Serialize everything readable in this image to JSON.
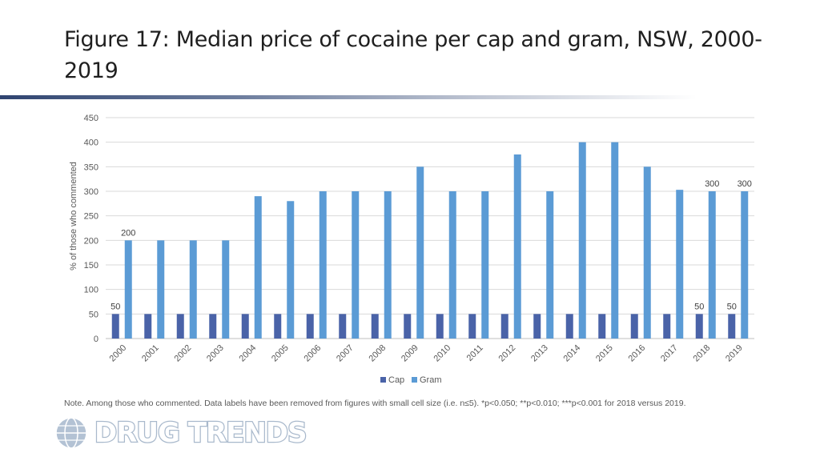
{
  "title": "Figure 17: Median price of cocaine per cap and gram, NSW, 2000-2019",
  "note": "Note. Among those who commented. Data labels have been removed from figures with small cell size (i.e. n≤5). *p<0.050; **p<0.010; ***p<0.001 for 2018 versus 2019.",
  "logo": {
    "text": "DRUG TRENDS",
    "icon": "globe-icon"
  },
  "chart_data": {
    "type": "bar",
    "categories": [
      "2000",
      "2001",
      "2002",
      "2003",
      "2004",
      "2005",
      "2006",
      "2007",
      "2008",
      "2009",
      "2010",
      "2011",
      "2012",
      "2013",
      "2014",
      "2015",
      "2016",
      "2017",
      "2018",
      "2019"
    ],
    "series": [
      {
        "name": "Cap",
        "color": "#4a63a8",
        "values": [
          50,
          50,
          50,
          50,
          50,
          50,
          50,
          50,
          50,
          50,
          50,
          50,
          50,
          50,
          50,
          50,
          50,
          50,
          50,
          50
        ]
      },
      {
        "name": "Gram",
        "color": "#5b9bd5",
        "values": [
          200,
          200,
          200,
          200,
          290,
          280,
          300,
          300,
          300,
          350,
          300,
          300,
          375,
          300,
          400,
          400,
          350,
          303,
          300,
          300
        ]
      }
    ],
    "data_labels": [
      {
        "series": "Cap",
        "category": "2000",
        "text": "50"
      },
      {
        "series": "Gram",
        "category": "2000",
        "text": "200"
      },
      {
        "series": "Cap",
        "category": "2018",
        "text": "50"
      },
      {
        "series": "Gram",
        "category": "2018",
        "text": "300"
      },
      {
        "series": "Cap",
        "category": "2019",
        "text": "50"
      },
      {
        "series": "Gram",
        "category": "2019",
        "text": "300"
      }
    ],
    "ylabel": "% of those who commented",
    "xlabel": "",
    "ylim": [
      0,
      450
    ],
    "yticks": [
      0,
      50,
      100,
      150,
      200,
      250,
      300,
      350,
      400,
      450
    ],
    "grid": true,
    "legend_position": "bottom"
  }
}
